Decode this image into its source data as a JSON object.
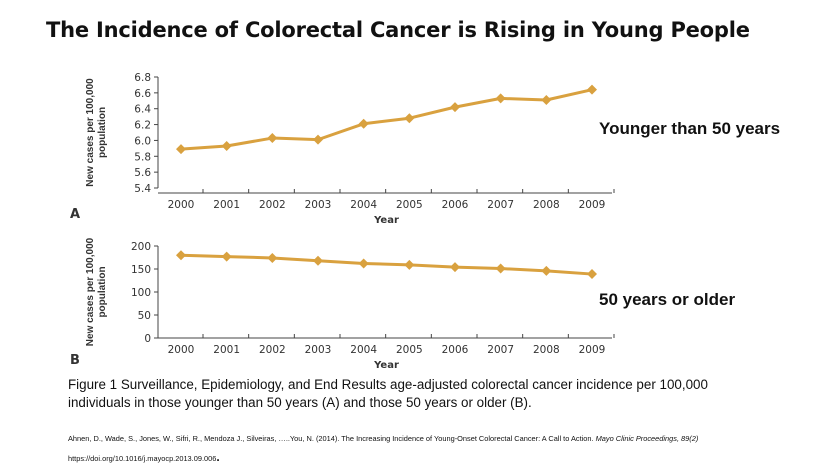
{
  "slide": {
    "title": "The Incidence of Colorectal Cancer is Rising in Young People",
    "caption": "Figure 1  Surveillance, Epidemiology, and End Results age-adjusted colorectal cancer incidence per 100,000 individuals in those younger than 50 years (A) and those 50 years or older (B).",
    "citation": {
      "authors_title": "Ahnen, D., Wade, S., Jones, W., Sifri, R., Mendoza J., Silveiras, …..You, N. (2014). The Increasing Incidence of Young-Onset Colorectal Cancer: A Call to Action. ",
      "journal": "Mayo Clinic Proceedings, 89(2)",
      "doi": "https://doi.org/10.1016/j.mayocp.2013.09.006",
      "end_mark": "."
    },
    "label_a": "Younger than 50 years",
    "label_b": "50 years or older"
  },
  "colors": {
    "series": "#d9a13f",
    "axis": "#444444"
  },
  "chart_data": [
    {
      "type": "line",
      "panel": "A",
      "xlabel": "Year",
      "ylabel": "New cases per 100,000 population",
      "categories": [
        "2000",
        "2001",
        "2002",
        "2003",
        "2004",
        "2005",
        "2006",
        "2007",
        "2008",
        "2009"
      ],
      "values": [
        5.89,
        5.93,
        6.03,
        6.01,
        6.21,
        6.28,
        6.42,
        6.53,
        6.51,
        6.64
      ],
      "ylim": [
        5.4,
        6.8
      ],
      "yticks": [
        "5.4",
        "5.6",
        "5.8",
        "6.0",
        "6.2",
        "6.4",
        "6.6",
        "6.8"
      ],
      "grid": false
    },
    {
      "type": "line",
      "panel": "B",
      "xlabel": "Year",
      "ylabel": "New cases per 100,000 population",
      "categories": [
        "2000",
        "2001",
        "2002",
        "2003",
        "2004",
        "2005",
        "2006",
        "2007",
        "2008",
        "2009"
      ],
      "values": [
        180,
        177,
        174,
        168,
        162,
        159,
        154,
        151,
        146,
        139
      ],
      "ylim": [
        0,
        200
      ],
      "yticks": [
        "0",
        "50",
        "100",
        "150",
        "200"
      ],
      "grid": false
    }
  ]
}
